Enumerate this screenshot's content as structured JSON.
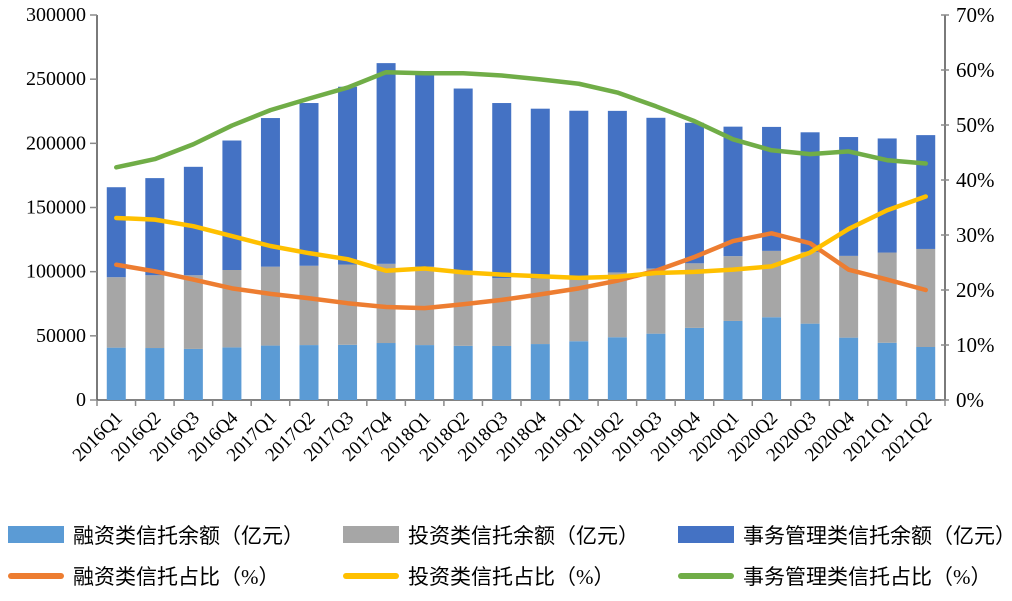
{
  "chart_data": {
    "type": "bar",
    "subtype": "stacked-bar-with-lines-combo",
    "title": "",
    "categories": [
      "2016Q1",
      "2016Q2",
      "2016Q3",
      "2016Q4",
      "2017Q1",
      "2017Q2",
      "2017Q3",
      "2017Q4",
      "2018Q1",
      "2018Q2",
      "2018Q3",
      "2018Q4",
      "2019Q1",
      "2019Q2",
      "2019Q3",
      "2019Q4",
      "2020Q1",
      "2020Q2",
      "2020Q3",
      "2020Q4",
      "2021Q1",
      "2021Q2"
    ],
    "bar_series": [
      {
        "name": "融资类信托余额（亿元）",
        "color": "#5B9BD5",
        "axis": "left",
        "values": [
          40800,
          40500,
          39800,
          41000,
          42400,
          42800,
          43000,
          44400,
          42800,
          42200,
          42100,
          43600,
          45800,
          48900,
          51700,
          56200,
          61600,
          64500,
          59500,
          48600,
          44600,
          41300
        ]
      },
      {
        "name": "投资类信托余额（亿元）",
        "color": "#A6A6A6",
        "axis": "left",
        "values": [
          54900,
          56700,
          57400,
          60300,
          61500,
          61800,
          62500,
          61700,
          61200,
          56300,
          52800,
          51100,
          50000,
          50500,
          50800,
          50300,
          50500,
          51700,
          55900,
          63700,
          70300,
          76400
        ]
      },
      {
        "name": "事务管理类信托余额（亿元）",
        "color": "#4472C4",
        "axis": "left",
        "values": [
          70100,
          75700,
          84500,
          100900,
          115800,
          126800,
          138600,
          156400,
          152100,
          144200,
          136500,
          132300,
          129600,
          125900,
          117400,
          109500,
          100900,
          96600,
          93200,
          92600,
          88900,
          88700
        ]
      }
    ],
    "line_series": [
      {
        "name": "融资类信托占比（%）",
        "color": "#ED7D31",
        "axis": "right",
        "values": [
          24.6,
          23.4,
          21.9,
          20.3,
          19.3,
          18.5,
          17.6,
          16.9,
          16.7,
          17.4,
          18.2,
          19.2,
          20.3,
          21.7,
          23.5,
          26.0,
          28.9,
          30.3,
          28.5,
          23.7,
          21.9,
          20.0
        ]
      },
      {
        "name": "投资类信托占比（%）",
        "color": "#FFC000",
        "axis": "right",
        "values": [
          33.1,
          32.8,
          31.6,
          29.8,
          28.0,
          26.7,
          25.6,
          23.5,
          23.9,
          23.2,
          22.8,
          22.5,
          22.2,
          22.4,
          23.1,
          23.3,
          23.7,
          24.3,
          26.8,
          31.1,
          34.5,
          37.0
        ]
      },
      {
        "name": "事务管理类信托占比（%）",
        "color": "#70AD47",
        "axis": "right",
        "values": [
          42.3,
          43.8,
          46.5,
          49.9,
          52.7,
          54.8,
          56.8,
          59.6,
          59.4,
          59.4,
          59.0,
          58.3,
          57.5,
          55.9,
          53.4,
          50.7,
          47.4,
          45.4,
          44.7,
          45.2,
          43.6,
          43.0
        ]
      }
    ],
    "left_axis": {
      "min": 0,
      "max": 300000,
      "step": 50000,
      "tick_labels": [
        "300000",
        "250000",
        "200000",
        "150000",
        "100000",
        "50000",
        "0"
      ]
    },
    "right_axis": {
      "min": 0,
      "max": 70,
      "step": 10,
      "format": "percent",
      "tick_labels": [
        "70%",
        "60%",
        "50%",
        "40%",
        "30%",
        "20%",
        "10%",
        "0%"
      ]
    },
    "grid": false,
    "legend_position": "bottom"
  },
  "legend": {
    "items": [
      {
        "label": "融资类信托余额（亿元）",
        "swatch": "bar",
        "color": "#5B9BD5"
      },
      {
        "label": "投资类信托余额（亿元）",
        "swatch": "bar",
        "color": "#A6A6A6"
      },
      {
        "label": "事务管理类信托余额（亿元）",
        "swatch": "bar",
        "color": "#4472C4"
      },
      {
        "label": "融资类信托占比（%）",
        "swatch": "line",
        "color": "#ED7D31"
      },
      {
        "label": "投资类信托占比（%）",
        "swatch": "line",
        "color": "#FFC000"
      },
      {
        "label": "事务管理类信托占比（%）",
        "swatch": "line",
        "color": "#70AD47"
      }
    ]
  },
  "style": {
    "axis_line_color": "#595959",
    "tick_color": "#8a8a8a",
    "text_color": "#000000",
    "background": "#ffffff"
  }
}
